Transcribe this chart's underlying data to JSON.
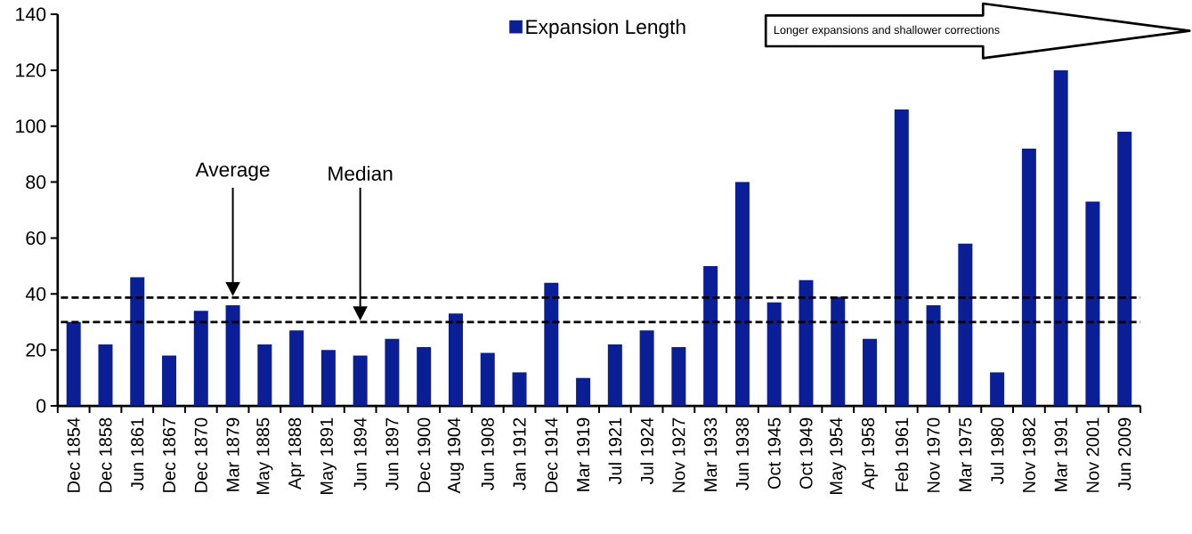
{
  "chart_data": {
    "type": "bar",
    "categories": [
      "Dec 1854",
      "Dec 1858",
      "Jun 1861",
      "Dec 1867",
      "Dec 1870",
      "Mar 1879",
      "May 1885",
      "Apr 1888",
      "May 1891",
      "Jun 1894",
      "Jun 1897",
      "Dec 1900",
      "Aug 1904",
      "Jun 1908",
      "Jan 1912",
      "Dec 1914",
      "Mar 1919",
      "Jul 1921",
      "Jul 1924",
      "Nov 1927",
      "Mar 1933",
      "Jun 1938",
      "Oct 1945",
      "Oct 1949",
      "May 1954",
      "Apr 1958",
      "Feb 1961",
      "Nov 1970",
      "Mar 1975",
      "Jul 1980",
      "Nov 1982",
      "Mar 1991",
      "Nov 2001",
      "Jun 2009"
    ],
    "series": [
      {
        "name": "Expansion Length",
        "color": "#0a1f96",
        "values": [
          30,
          22,
          46,
          18,
          34,
          36,
          22,
          27,
          20,
          18,
          24,
          21,
          33,
          19,
          12,
          44,
          10,
          22,
          27,
          21,
          50,
          80,
          37,
          45,
          39,
          24,
          106,
          36,
          58,
          12,
          92,
          120,
          73,
          98
        ]
      }
    ],
    "ylim": [
      0,
      140
    ],
    "yticks": [
      0,
      20,
      40,
      60,
      80,
      100,
      120,
      140
    ],
    "legend": "top",
    "ref_lines": [
      {
        "axis": "y",
        "value": 38.7,
        "label": "Average",
        "line_style": "dashed"
      },
      {
        "axis": "y",
        "value": 30,
        "label": "Median",
        "line_style": "dashed"
      }
    ],
    "annotations": [
      "Longer expansions and shallower corrections"
    ]
  }
}
